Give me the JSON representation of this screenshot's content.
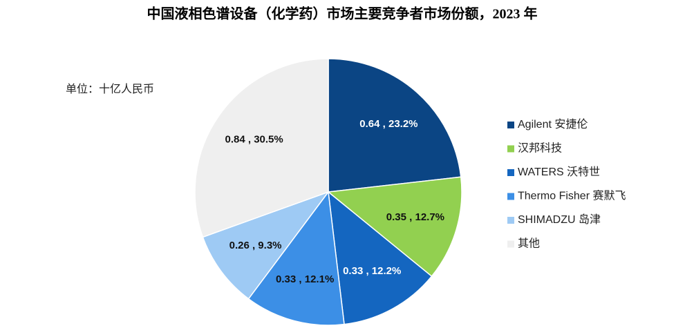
{
  "chart_data": {
    "type": "pie",
    "title": "中国液相色谱设备（化学药）市场主要竞争者市场份额，2023 年",
    "subtitle": "单位：十亿人民币",
    "categories": [
      "Agilent 安捷伦",
      "汉邦科技",
      "WATERS 沃特世",
      "Thermo Fisher 赛默飞",
      "SHIMADZU 岛津",
      "其他"
    ],
    "values": [
      23.2,
      12.7,
      12.2,
      12.1,
      9.3,
      30.5
    ],
    "value_labels": [
      "0.64 , 23.2%",
      "0.35 , 12.7%",
      "0.33 , 12.2%",
      "0.33 , 12.1%",
      "0.26 , 9.3%",
      "0.84 , 30.5%"
    ],
    "colors": [
      "#0b4584",
      "#92d050",
      "#1466c0",
      "#3c8fe6",
      "#9ecaf4",
      "#efefef"
    ],
    "legend": "right"
  }
}
